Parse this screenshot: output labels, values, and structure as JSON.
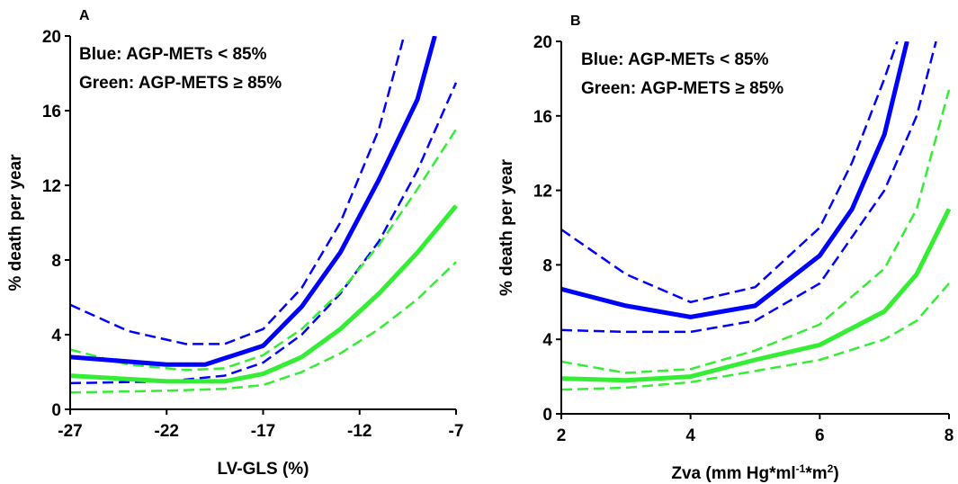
{
  "chart_data": [
    {
      "type": "line",
      "panel_label": "A",
      "annotations": [
        "Blue: AGP-METs < 85%",
        "Green: AGP-METS ≥ 85%"
      ],
      "ylabel": "% death per year",
      "xlabel": [
        {
          "text": "LV-GLS (%)"
        }
      ],
      "xlim": [
        -27,
        -7
      ],
      "xticks": [
        -27,
        -22,
        -17,
        -12,
        -7
      ],
      "ylim": [
        0,
        20
      ],
      "yticks": [
        0,
        4,
        8,
        12,
        16,
        20
      ],
      "series": [
        {
          "color": "#0000ff",
          "dashed": true,
          "x": [
            -27,
            -24,
            -21,
            -19,
            -17,
            -15,
            -13,
            -11,
            -9.7
          ],
          "values": [
            5.6,
            4.2,
            3.5,
            3.5,
            4.3,
            6.5,
            10,
            15,
            20
          ]
        },
        {
          "color": "#0000ff",
          "dashed": true,
          "x": [
            -27,
            -22,
            -19,
            -17,
            -15,
            -13,
            -11,
            -9,
            -7
          ],
          "values": [
            1.4,
            1.5,
            1.8,
            2.5,
            4,
            6.2,
            9,
            12.8,
            17.5
          ]
        },
        {
          "color": "#33ee33",
          "dashed": true,
          "x": [
            -27,
            -24,
            -21,
            -19,
            -17,
            -15,
            -13,
            -11,
            -9,
            -7
          ],
          "values": [
            3.2,
            2.4,
            2.1,
            2.2,
            2.9,
            4.3,
            6.3,
            8.8,
            11.8,
            15
          ]
        },
        {
          "color": "#33ee33",
          "dashed": true,
          "x": [
            -27,
            -22,
            -19,
            -17,
            -15,
            -13,
            -11,
            -9,
            -7
          ],
          "values": [
            0.9,
            1.0,
            1.1,
            1.3,
            2.0,
            3.0,
            4.3,
            5.9,
            7.9
          ]
        },
        {
          "color": "#0000ff",
          "dashed": false,
          "x": [
            -27,
            -22,
            -20,
            -17,
            -15,
            -13,
            -11,
            -9,
            -8.1
          ],
          "values": [
            2.8,
            2.4,
            2.4,
            3.4,
            5.5,
            8.4,
            12.3,
            16.6,
            20
          ]
        },
        {
          "color": "#33ee33",
          "dashed": false,
          "x": [
            -27,
            -22,
            -19,
            -17,
            -15,
            -13,
            -11,
            -9,
            -7
          ],
          "values": [
            1.8,
            1.5,
            1.5,
            1.9,
            2.8,
            4.3,
            6.2,
            8.4,
            10.9
          ]
        }
      ]
    },
    {
      "type": "line",
      "panel_label": "B",
      "annotations": [
        "Blue: AGP-METs < 85%",
        "Green: AGP-METS ≥ 85%"
      ],
      "ylabel": "% death per year",
      "xlabel": [
        {
          "text": "Zva (mm Hg*ml"
        },
        {
          "text": "-1",
          "sup": true
        },
        {
          "text": "*m"
        },
        {
          "text": "2",
          "sup": true
        },
        {
          "text": ")"
        }
      ],
      "xlim": [
        2,
        8
      ],
      "xticks": [
        2,
        4,
        6,
        8
      ],
      "ylim": [
        0,
        20
      ],
      "yticks": [
        0,
        4,
        8,
        12,
        16,
        20
      ],
      "series": [
        {
          "color": "#0000ff",
          "dashed": true,
          "x": [
            2,
            3,
            4,
            5,
            6,
            6.5,
            7,
            7.2
          ],
          "values": [
            9.9,
            7.5,
            6,
            6.8,
            10,
            13.5,
            18,
            20
          ]
        },
        {
          "color": "#0000ff",
          "dashed": true,
          "x": [
            2,
            3,
            4,
            5,
            6,
            7,
            7.5,
            7.8
          ],
          "values": [
            4.5,
            4.4,
            4.4,
            5,
            7,
            12,
            16,
            20
          ]
        },
        {
          "color": "#33ee33",
          "dashed": true,
          "x": [
            2,
            3,
            4,
            5,
            6,
            7,
            7.5,
            8
          ],
          "values": [
            2.8,
            2.2,
            2.4,
            3.4,
            4.8,
            7.8,
            11,
            17.4
          ]
        },
        {
          "color": "#33ee33",
          "dashed": true,
          "x": [
            2,
            3,
            4,
            5,
            6,
            7,
            7.5,
            8
          ],
          "values": [
            1.3,
            1.4,
            1.7,
            2.3,
            2.9,
            4.0,
            5,
            7
          ]
        },
        {
          "color": "#0000ff",
          "dashed": false,
          "x": [
            2,
            3,
            4,
            5,
            6,
            6.5,
            7,
            7.35
          ],
          "values": [
            6.7,
            5.8,
            5.2,
            5.8,
            8.5,
            11,
            15,
            20
          ]
        },
        {
          "color": "#33ee33",
          "dashed": false,
          "x": [
            2,
            3,
            4,
            5,
            6,
            7,
            7.5,
            8
          ],
          "values": [
            1.9,
            1.8,
            2.0,
            2.9,
            3.7,
            5.5,
            7.5,
            11
          ]
        }
      ]
    }
  ]
}
